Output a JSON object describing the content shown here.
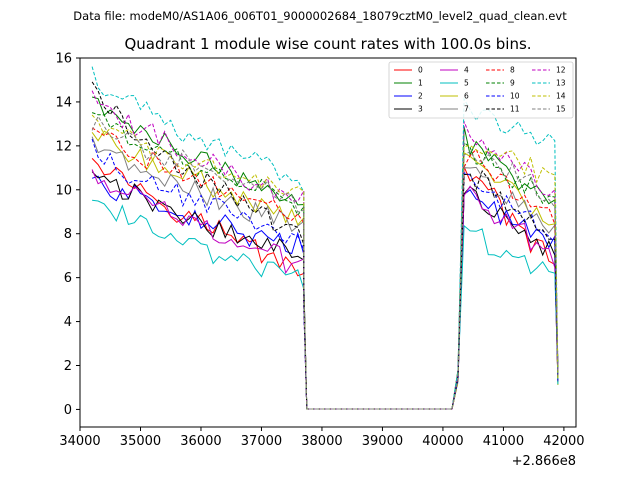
{
  "chart_data": {
    "type": "line",
    "suptitle": "Data file: modeM0/AS1A06_006T01_9000002684_18079cztM0_level2_quad_clean.evt",
    "title": "Quadrant 1 module wise count rates with 100.0s bins.",
    "xlabel": "",
    "ylabel": "",
    "x_offset_label": "+2.866e8",
    "xlim": [
      34000,
      42200
    ],
    "ylim": [
      -0.8,
      16
    ],
    "xticks": [
      34000,
      35000,
      36000,
      37000,
      38000,
      39000,
      40000,
      41000,
      42000
    ],
    "xtick_labels": [
      "34000",
      "35000",
      "36000",
      "37000",
      "38000",
      "39000",
      "40000",
      "41000",
      "42000"
    ],
    "yticks": [
      0,
      2,
      4,
      6,
      8,
      10,
      12,
      14,
      16
    ],
    "ytick_labels": [
      "0",
      "2",
      "4",
      "6",
      "8",
      "10",
      "12",
      "14",
      "16"
    ],
    "segment_1": {
      "x_start": 34200,
      "x_end": 37650,
      "step": 100
    },
    "gap": {
      "x_start": 37750,
      "x_end": 40150
    },
    "segment_2": {
      "x_start": 40350,
      "x_end": 41850,
      "step": 100
    },
    "series": [
      {
        "name": "0",
        "color": "#ff0000",
        "dash": "solid",
        "seg1_start": 11.8,
        "seg1_end": 6.3,
        "seg2_start": 11.2,
        "seg2_end": 6.4
      },
      {
        "name": "1",
        "color": "#008000",
        "dash": "solid",
        "seg1_start": 14.2,
        "seg1_end": 9.3,
        "seg2_start": 12.3,
        "seg2_end": 9.5
      },
      {
        "name": "2",
        "color": "#0000ff",
        "dash": "solid",
        "seg1_start": 10.5,
        "seg1_end": 7.4,
        "seg2_start": 9.8,
        "seg2_end": 7.5
      },
      {
        "name": "3",
        "color": "#000000",
        "dash": "solid",
        "seg1_start": 10.8,
        "seg1_end": 7.0,
        "seg2_start": 10.0,
        "seg2_end": 7.2
      },
      {
        "name": "4",
        "color": "#c000c0",
        "dash": "solid",
        "seg1_start": 10.9,
        "seg1_end": 6.5,
        "seg2_start": 10.1,
        "seg2_end": 6.8
      },
      {
        "name": "5",
        "color": "#00bfbf",
        "dash": "solid",
        "seg1_start": 9.5,
        "seg1_end": 5.9,
        "seg2_start": 8.0,
        "seg2_end": 6.2
      },
      {
        "name": "6",
        "color": "#bfbf00",
        "dash": "solid",
        "seg1_start": 12.6,
        "seg1_end": 8.6,
        "seg2_start": 11.5,
        "seg2_end": 8.6
      },
      {
        "name": "7",
        "color": "#808080",
        "dash": "solid",
        "seg1_start": 12.4,
        "seg1_end": 8.3,
        "seg2_start": 11.0,
        "seg2_end": 8.2
      },
      {
        "name": "8",
        "color": "#ff0000",
        "dash": "dashed",
        "seg1_start": 12.8,
        "seg1_end": 8.6,
        "seg2_start": 11.6,
        "seg2_end": 8.8
      },
      {
        "name": "9",
        "color": "#008000",
        "dash": "dashed",
        "seg1_start": 13.5,
        "seg1_end": 9.2,
        "seg2_start": 12.0,
        "seg2_end": 9.3
      },
      {
        "name": "10",
        "color": "#0000ff",
        "dash": "dashed",
        "seg1_start": 11.9,
        "seg1_end": 7.6,
        "seg2_start": 10.8,
        "seg2_end": 7.8
      },
      {
        "name": "11",
        "color": "#000000",
        "dash": "dashed",
        "seg1_start": 14.5,
        "seg1_end": 7.7,
        "seg2_start": 10.9,
        "seg2_end": 7.6
      },
      {
        "name": "12",
        "color": "#c000c0",
        "dash": "dashed",
        "seg1_start": 14.1,
        "seg1_end": 9.6,
        "seg2_start": 12.6,
        "seg2_end": 10.0
      },
      {
        "name": "13",
        "color": "#00bfbf",
        "dash": "dashed",
        "seg1_start": 15.2,
        "seg1_end": 10.3,
        "seg2_start": 13.8,
        "seg2_end": 11.9
      },
      {
        "name": "14",
        "color": "#bfbf00",
        "dash": "dashed",
        "seg1_start": 13.0,
        "seg1_end": 9.8,
        "seg2_start": 12.2,
        "seg2_end": 10.5
      },
      {
        "name": "15",
        "color": "#808080",
        "dash": "dashed",
        "seg1_start": 13.2,
        "seg1_end": 9.3,
        "seg2_start": 12.0,
        "seg2_end": 9.6
      }
    ],
    "legend_position": "top-right",
    "legend_columns": 4
  }
}
